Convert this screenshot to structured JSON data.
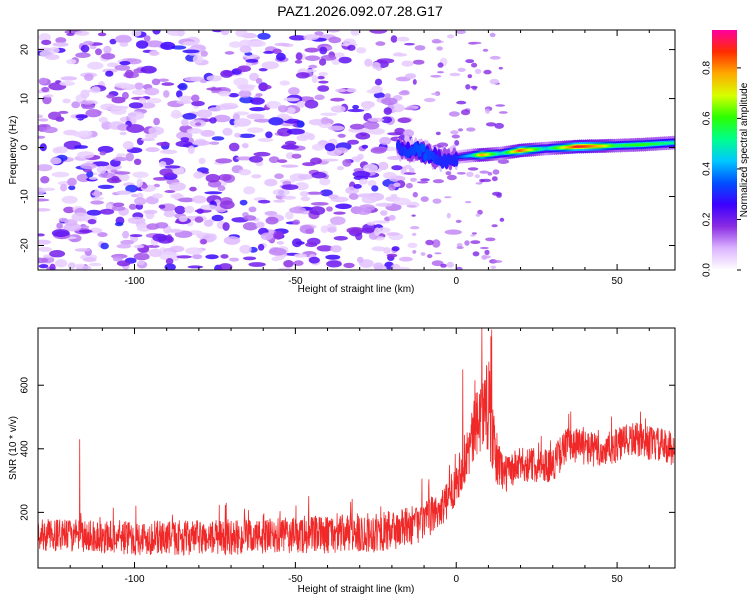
{
  "title": "PAZ1.2026.092.07.28.G17",
  "chart_data": [
    {
      "type": "heatmap",
      "title": "PAZ1.2026.092.07.28.G17",
      "xlabel": "Height of straight line (km)",
      "ylabel": "Frequency (Hz)",
      "xlim": [
        -130,
        68
      ],
      "ylim": [
        -25,
        24
      ],
      "xticks": [
        -100,
        -50,
        0,
        50
      ],
      "yticks": [
        -20,
        -10,
        0,
        10,
        20
      ],
      "colorbar": {
        "label": "Normalized spectral amplitude",
        "range": [
          0,
          0.95
        ],
        "ticks": [
          0.0,
          0.2,
          0.4,
          0.6,
          0.8
        ],
        "colors": [
          "#ffffff",
          "#dcb4ff",
          "#8a2be2",
          "#3c00ff",
          "#0050ff",
          "#00c8ff",
          "#00ff8c",
          "#2bff00",
          "#d7ff00",
          "#ffaa00",
          "#ff2d00",
          "#ff00a0"
        ]
      },
      "ridge": [
        {
          "x": -18,
          "freq": 0.0,
          "amp": 0.3
        },
        {
          "x": -10,
          "freq": -1.0,
          "amp": 0.35
        },
        {
          "x": -5,
          "freq": -2.5,
          "amp": 0.3
        },
        {
          "x": 0,
          "freq": -2.0,
          "amp": 0.3
        },
        {
          "x": 5,
          "freq": -1.6,
          "amp": 0.45
        },
        {
          "x": 8,
          "freq": -1.5,
          "amp": 0.8
        },
        {
          "x": 14,
          "freq": -1.2,
          "amp": 0.45
        },
        {
          "x": 20,
          "freq": -0.6,
          "amp": 0.85
        },
        {
          "x": 28,
          "freq": -0.2,
          "amp": 0.45
        },
        {
          "x": 38,
          "freq": 0.2,
          "amp": 0.9
        },
        {
          "x": 45,
          "freq": 0.3,
          "amp": 0.75
        },
        {
          "x": 50,
          "freq": 0.4,
          "amp": 0.55
        },
        {
          "x": 58,
          "freq": 0.6,
          "amp": 0.6
        },
        {
          "x": 68,
          "freq": 1.0,
          "amp": 0.5
        }
      ],
      "noise_region": {
        "x_min": -130,
        "x_max": -15,
        "freq_min": -25,
        "freq_max": 24,
        "typical_amp": [
          0.05,
          0.3
        ]
      }
    },
    {
      "type": "line",
      "xlabel": "Height of straight line (km)",
      "ylabel": "SNR (10 * v/v)",
      "xlim": [
        -130,
        68
      ],
      "ylim": [
        25,
        780
      ],
      "xticks": [
        -100,
        -50,
        0,
        50
      ],
      "yticks": [
        200,
        400,
        600
      ],
      "color": "#f02828",
      "envelope": [
        {
          "x": -130,
          "mean": 130,
          "spread": 50
        },
        {
          "x": -100,
          "mean": 120,
          "spread": 55
        },
        {
          "x": -70,
          "mean": 120,
          "spread": 55
        },
        {
          "x": -40,
          "mean": 130,
          "spread": 60
        },
        {
          "x": -20,
          "mean": 140,
          "spread": 65
        },
        {
          "x": -10,
          "mean": 170,
          "spread": 60
        },
        {
          "x": -3,
          "mean": 230,
          "spread": 60
        },
        {
          "x": 0,
          "mean": 300,
          "spread": 70
        },
        {
          "x": 4,
          "mean": 400,
          "spread": 90
        },
        {
          "x": 7,
          "mean": 500,
          "spread": 110
        },
        {
          "x": 10,
          "mean": 540,
          "spread": 150
        },
        {
          "x": 12,
          "mean": 380,
          "spread": 100
        },
        {
          "x": 15,
          "mean": 320,
          "spread": 60
        },
        {
          "x": 20,
          "mean": 350,
          "spread": 55
        },
        {
          "x": 30,
          "mean": 350,
          "spread": 55
        },
        {
          "x": 35,
          "mean": 420,
          "spread": 60
        },
        {
          "x": 45,
          "mean": 390,
          "spread": 55
        },
        {
          "x": 55,
          "mean": 430,
          "spread": 55
        },
        {
          "x": 68,
          "mean": 400,
          "spread": 55
        }
      ],
      "spikes": [
        {
          "x": -117,
          "y": 430
        },
        {
          "x": 2,
          "y": 650
        },
        {
          "x": 8,
          "y": 780
        },
        {
          "x": 11,
          "y": 775
        },
        {
          "x": 35,
          "y": 510
        }
      ]
    }
  ]
}
